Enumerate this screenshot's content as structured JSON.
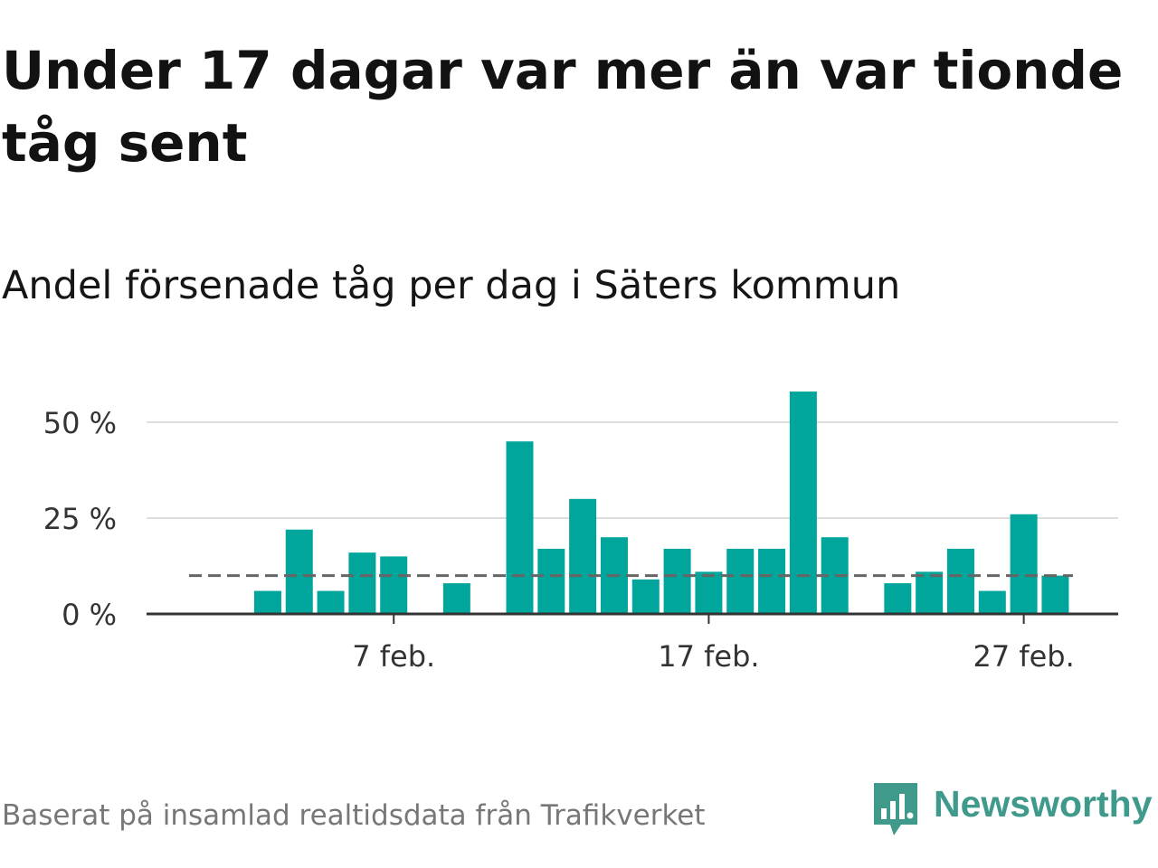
{
  "title": "Under 17 dagar var mer än var tionde tåg sent",
  "subtitle": "Andel försenade tåg per dag i Säters kommun",
  "source": "Baserat på insamlad realtidsdata från Trafikverket",
  "brand": {
    "name": "Newsworthy",
    "icon": "newsworthy-logo-icon",
    "color": "#3f9a8c"
  },
  "colors": {
    "bar": "#00a59b",
    "grid": "#dddddd",
    "axis": "#333333",
    "reference_line": "#666666"
  },
  "chart_data": {
    "type": "bar",
    "categories": [
      "1 feb.",
      "2 feb.",
      "3 feb.",
      "4 feb.",
      "5 feb.",
      "6 feb.",
      "7 feb.",
      "8 feb.",
      "9 feb.",
      "10 feb.",
      "11 feb.",
      "12 feb.",
      "13 feb.",
      "14 feb.",
      "15 feb.",
      "16 feb.",
      "17 feb.",
      "18 feb.",
      "19 feb.",
      "20 feb.",
      "21 feb.",
      "22 feb.",
      "23 feb.",
      "24 feb.",
      "25 feb.",
      "26 feb.",
      "27 feb.",
      "28 feb."
    ],
    "values": [
      null,
      null,
      6,
      22,
      6,
      16,
      15,
      null,
      8,
      null,
      45,
      17,
      30,
      20,
      9,
      17,
      11,
      17,
      17,
      58,
      20,
      null,
      8,
      11,
      17,
      6,
      26,
      10
    ],
    "reference_value": 10,
    "ylim": [
      0,
      60
    ],
    "yticks": [
      0,
      25,
      50
    ],
    "ytick_labels": [
      "0 %",
      "25 %",
      "50 %"
    ],
    "xticks": [
      "7 feb.",
      "17 feb.",
      "27 feb."
    ],
    "xlabel": "",
    "ylabel": "",
    "grid": true,
    "legend": false
  }
}
